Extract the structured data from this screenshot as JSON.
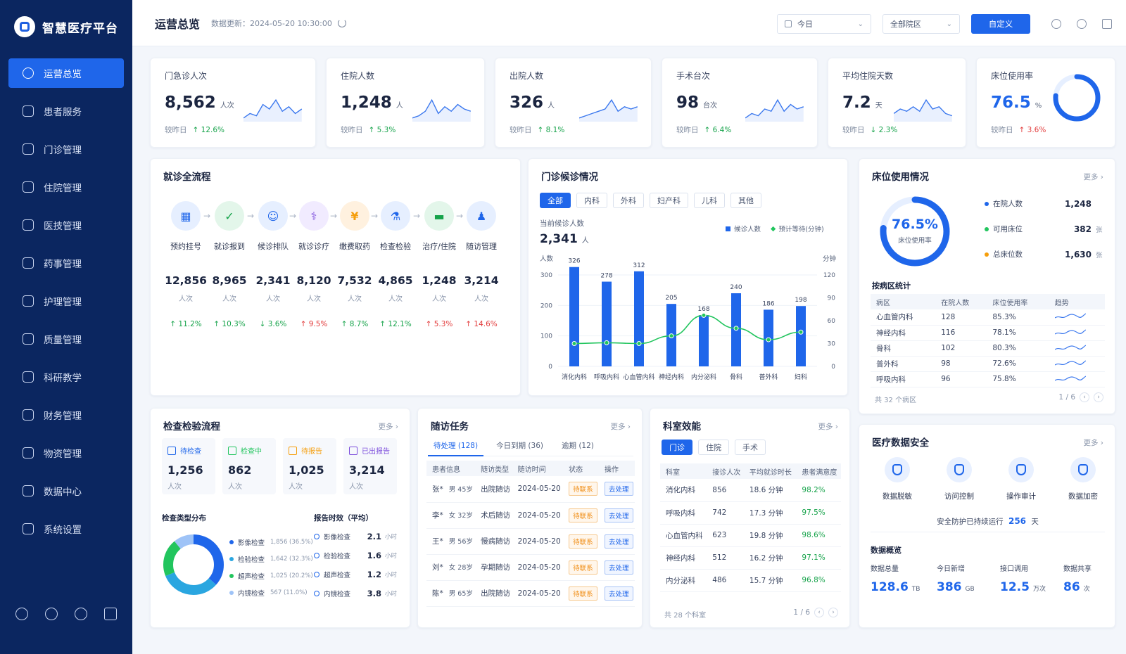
{
  "app": {
    "name": "智慧医疗平台"
  },
  "sidebar": {
    "items": [
      {
        "label": "运营总览"
      },
      {
        "label": "患者服务"
      },
      {
        "label": "门诊管理"
      },
      {
        "label": "住院管理"
      },
      {
        "label": "医技管理"
      },
      {
        "label": "药事管理"
      },
      {
        "label": "护理管理"
      },
      {
        "label": "质量管理"
      },
      {
        "label": "科研教学"
      },
      {
        "label": "财务管理"
      },
      {
        "label": "物资管理"
      },
      {
        "label": "数据中心"
      },
      {
        "label": "系统设置"
      }
    ]
  },
  "header": {
    "title": "运营总览",
    "updated": "数据更新：2024-05-20 10:30:00",
    "date_select": "今日",
    "hospital_select": "全部院区",
    "custom_button": "自定义"
  },
  "kpis": [
    {
      "label": "门急诊人次",
      "value": "8,562",
      "unit": "人次",
      "cmp": "较昨日",
      "trend": "↑ 12.6%",
      "color": "#16a34a"
    },
    {
      "label": "住院人数",
      "value": "1,248",
      "unit": "人",
      "cmp": "较昨日",
      "trend": "↑ 5.3%",
      "color": "#16a34a"
    },
    {
      "label": "出院人数",
      "value": "326",
      "unit": "人",
      "cmp": "较昨日",
      "trend": "↑ 8.1%",
      "color": "#16a34a"
    },
    {
      "label": "手术台次",
      "value": "98",
      "unit": "台次",
      "cmp": "较昨日",
      "trend": "↑ 6.4%",
      "color": "#16a34a"
    },
    {
      "label": "平均住院天数",
      "value": "7.2",
      "unit": "天",
      "cmp": "较昨日",
      "trend": "↓ 2.3%",
      "color": "#16a34a"
    },
    {
      "label": "床位使用率",
      "value": "76.5",
      "unit": "%",
      "cmp": "较昨日",
      "trend": "↑ 3.6%",
      "color": "#e23b3b",
      "gauge": 0.765
    }
  ],
  "flow": {
    "title": "就诊全流程",
    "steps": [
      {
        "label": "预约挂号",
        "value": "12,856",
        "unit": "人次",
        "trend": "↑ 11.2%",
        "color": "#16a34a",
        "icon": "calendar-icon",
        "glyph": "▦",
        "ic_bg": "#e6efff",
        "ic_fg": "#1f66ea"
      },
      {
        "label": "就诊报到",
        "value": "8,965",
        "unit": "人次",
        "trend": "↑ 10.3%",
        "color": "#16a34a",
        "icon": "check-icon",
        "glyph": "✓",
        "ic_bg": "#e3f6ea",
        "ic_fg": "#16a34a"
      },
      {
        "label": "候诊排队",
        "value": "2,341",
        "unit": "人次",
        "trend": "↓ 3.6%",
        "color": "#16a34a",
        "icon": "people-icon",
        "glyph": "☺",
        "ic_bg": "#e6efff",
        "ic_fg": "#1f66ea"
      },
      {
        "label": "就诊诊疗",
        "value": "8,120",
        "unit": "人次",
        "trend": "↑ 9.5%",
        "color": "#e23b3b",
        "icon": "stethoscope-icon",
        "glyph": "⚕",
        "ic_bg": "#f1ebff",
        "ic_fg": "#7c4ddc"
      },
      {
        "label": "缴费取药",
        "value": "7,532",
        "unit": "人次",
        "trend": "↑ 8.7%",
        "color": "#16a34a",
        "icon": "yuan-icon",
        "glyph": "¥",
        "ic_bg": "#fff1df",
        "ic_fg": "#f59e0b"
      },
      {
        "label": "检查检验",
        "value": "4,865",
        "unit": "人次",
        "trend": "↑ 12.1%",
        "color": "#16a34a",
        "icon": "flask-icon",
        "glyph": "⚗",
        "ic_bg": "#e6efff",
        "ic_fg": "#1f66ea"
      },
      {
        "label": "治疗/住院",
        "value": "1,248",
        "unit": "人次",
        "trend": "↑ 5.3%",
        "color": "#e23b3b",
        "icon": "bed-icon",
        "glyph": "▬",
        "ic_bg": "#e3f6ea",
        "ic_fg": "#16a34a"
      },
      {
        "label": "随访管理",
        "value": "3,214",
        "unit": "人次",
        "trend": "↑ 14.6%",
        "color": "#e23b3b",
        "icon": "user-icon",
        "glyph": "♟",
        "ic_bg": "#e6efff",
        "ic_fg": "#1f66ea"
      }
    ]
  },
  "waiting": {
    "title": "门诊候诊情况",
    "tabs": [
      "全部",
      "内科",
      "外科",
      "妇产科",
      "儿科",
      "其他"
    ],
    "current_label": "当前候诊人数",
    "current_value": "2,341",
    "current_unit": "人",
    "legend_a": "候诊人数",
    "legend_b": "预计等待(分钟)",
    "left_unit": "人数",
    "right_unit": "分钟"
  },
  "chart_data": {
    "type": "bar",
    "categories": [
      "消化内科",
      "呼吸内科",
      "心血管内科",
      "神经内科",
      "内分泌科",
      "骨科",
      "普外科",
      "妇科"
    ],
    "series": [
      {
        "name": "候诊人数",
        "values": [
          326,
          278,
          312,
          205,
          168,
          240,
          186,
          198
        ]
      },
      {
        "name": "预计等待(分钟)",
        "values": [
          30,
          31,
          30,
          40,
          67,
          50,
          35,
          45
        ]
      }
    ],
    "ylim": [
      0,
      300
    ],
    "yticks": [
      0,
      100,
      200,
      300
    ],
    "y2lim": [
      0,
      120
    ],
    "y2ticks": [
      0,
      30,
      60,
      90,
      120
    ]
  },
  "beds": {
    "title": "床位使用情况",
    "more": "更多 ›",
    "rate": "76.5%",
    "rate_label": "床位使用率",
    "rate_value": 0.765,
    "legend": [
      {
        "label": "在院人数",
        "value": "1,248",
        "unit": "",
        "color": "#1f66ea"
      },
      {
        "label": "可用床位",
        "value": "382",
        "unit": "张",
        "color": "#22c55e"
      },
      {
        "label": "总床位数",
        "value": "1,630",
        "unit": "张",
        "color": "#f59e0b"
      }
    ],
    "ward_title": "按病区统计",
    "headers": [
      "病区",
      "在院人数",
      "床位使用率",
      "趋势"
    ],
    "rows": [
      [
        "心血管内科",
        "128",
        "85.3%"
      ],
      [
        "神经内科",
        "116",
        "78.1%"
      ],
      [
        "骨科",
        "102",
        "80.3%"
      ],
      [
        "普外科",
        "98",
        "72.6%"
      ],
      [
        "呼吸内科",
        "96",
        "75.8%"
      ]
    ],
    "footer": "共 32 个病区",
    "page": "1 / 6"
  },
  "exam": {
    "title": "检查检验流程",
    "more": "更多 ›",
    "stats": [
      {
        "label": "待检查",
        "value": "1,256",
        "unit": "人次",
        "color": "#1f66ea"
      },
      {
        "label": "检查中",
        "value": "862",
        "unit": "人次",
        "color": "#22c55e"
      },
      {
        "label": "待报告",
        "value": "1,025",
        "unit": "人次",
        "color": "#f59e0b"
      },
      {
        "label": "已出报告",
        "value": "3,214",
        "unit": "人次",
        "color": "#7c4ddc"
      }
    ],
    "dist_title": "检查类型分布",
    "dist": [
      {
        "label": "影像检查",
        "detail": "1,856 (36.5%)",
        "pct": 36.5,
        "color": "#1f66ea"
      },
      {
        "label": "检验检查",
        "detail": "1,642 (32.3%)",
        "pct": 32.3,
        "color": "#2aa6e0"
      },
      {
        "label": "超声检查",
        "detail": "1,025 (20.2%)",
        "pct": 20.2,
        "color": "#22c55e"
      },
      {
        "label": "内镜检查",
        "detail": "567 (11.0%)",
        "pct": 11.0,
        "color": "#9ec3f7"
      }
    ],
    "report_title": "报告时效（平均）",
    "reports": [
      {
        "label": "影像检查",
        "value": "2.1",
        "unit": "小时"
      },
      {
        "label": "检验检查",
        "value": "1.6",
        "unit": "小时"
      },
      {
        "label": "超声检查",
        "value": "1.2",
        "unit": "小时"
      },
      {
        "label": "内镜检查",
        "value": "3.8",
        "unit": "小时"
      }
    ]
  },
  "followup": {
    "title": "随访任务",
    "more": "更多 ›",
    "tabs": [
      "待处理 (128)",
      "今日到期 (36)",
      "逾期 (12)"
    ],
    "headers": [
      "患者信息",
      "随访类型",
      "随访时间",
      "状态",
      "操作"
    ],
    "rows": [
      {
        "name": "张*",
        "info": "男 45岁",
        "type": "出院随访",
        "date": "2024-05-20",
        "status": "待联系",
        "action": "去处理"
      },
      {
        "name": "李*",
        "info": "女 32岁",
        "type": "术后随访",
        "date": "2024-05-20",
        "status": "待联系",
        "action": "去处理"
      },
      {
        "name": "王*",
        "info": "男 56岁",
        "type": "慢病随访",
        "date": "2024-05-20",
        "status": "待联系",
        "action": "去处理"
      },
      {
        "name": "刘*",
        "info": "女 28岁",
        "type": "孕期随访",
        "date": "2024-05-20",
        "status": "待联系",
        "action": "去处理"
      },
      {
        "name": "陈*",
        "info": "男 65岁",
        "type": "出院随访",
        "date": "2024-05-20",
        "status": "待联系",
        "action": "去处理"
      }
    ]
  },
  "dept": {
    "title": "科室效能",
    "more": "更多 ›",
    "tabs": [
      "门诊",
      "住院",
      "手术"
    ],
    "headers": [
      "科室",
      "接诊人次",
      "平均就诊时长",
      "患者满意度"
    ],
    "rows": [
      [
        "消化内科",
        "856",
        "18.6 分钟",
        "98.2%"
      ],
      [
        "呼吸内科",
        "742",
        "17.3 分钟",
        "97.5%"
      ],
      [
        "心血管内科",
        "623",
        "19.8 分钟",
        "98.6%"
      ],
      [
        "神经内科",
        "512",
        "16.2 分钟",
        "97.1%"
      ],
      [
        "内分泌科",
        "486",
        "15.7 分钟",
        "96.8%"
      ]
    ],
    "footer": "共 28 个科室",
    "page": "1 / 6"
  },
  "security": {
    "title": "医疗数据安全",
    "more": "更多 ›",
    "items": [
      {
        "label": "数据脱敏"
      },
      {
        "label": "访问控制"
      },
      {
        "label": "操作审计"
      },
      {
        "label": "数据加密"
      }
    ],
    "safe_prefix": "安全防护已持续运行",
    "safe_days": "256",
    "safe_unit": "天",
    "overview_title": "数据概览",
    "overview": [
      {
        "label": "数据总量",
        "value": "128.6",
        "unit": "TB"
      },
      {
        "label": "今日新增",
        "value": "386",
        "unit": "GB"
      },
      {
        "label": "接口调用",
        "value": "12.5",
        "unit": "万次"
      },
      {
        "label": "数据共享",
        "value": "86",
        "unit": "次"
      }
    ]
  }
}
